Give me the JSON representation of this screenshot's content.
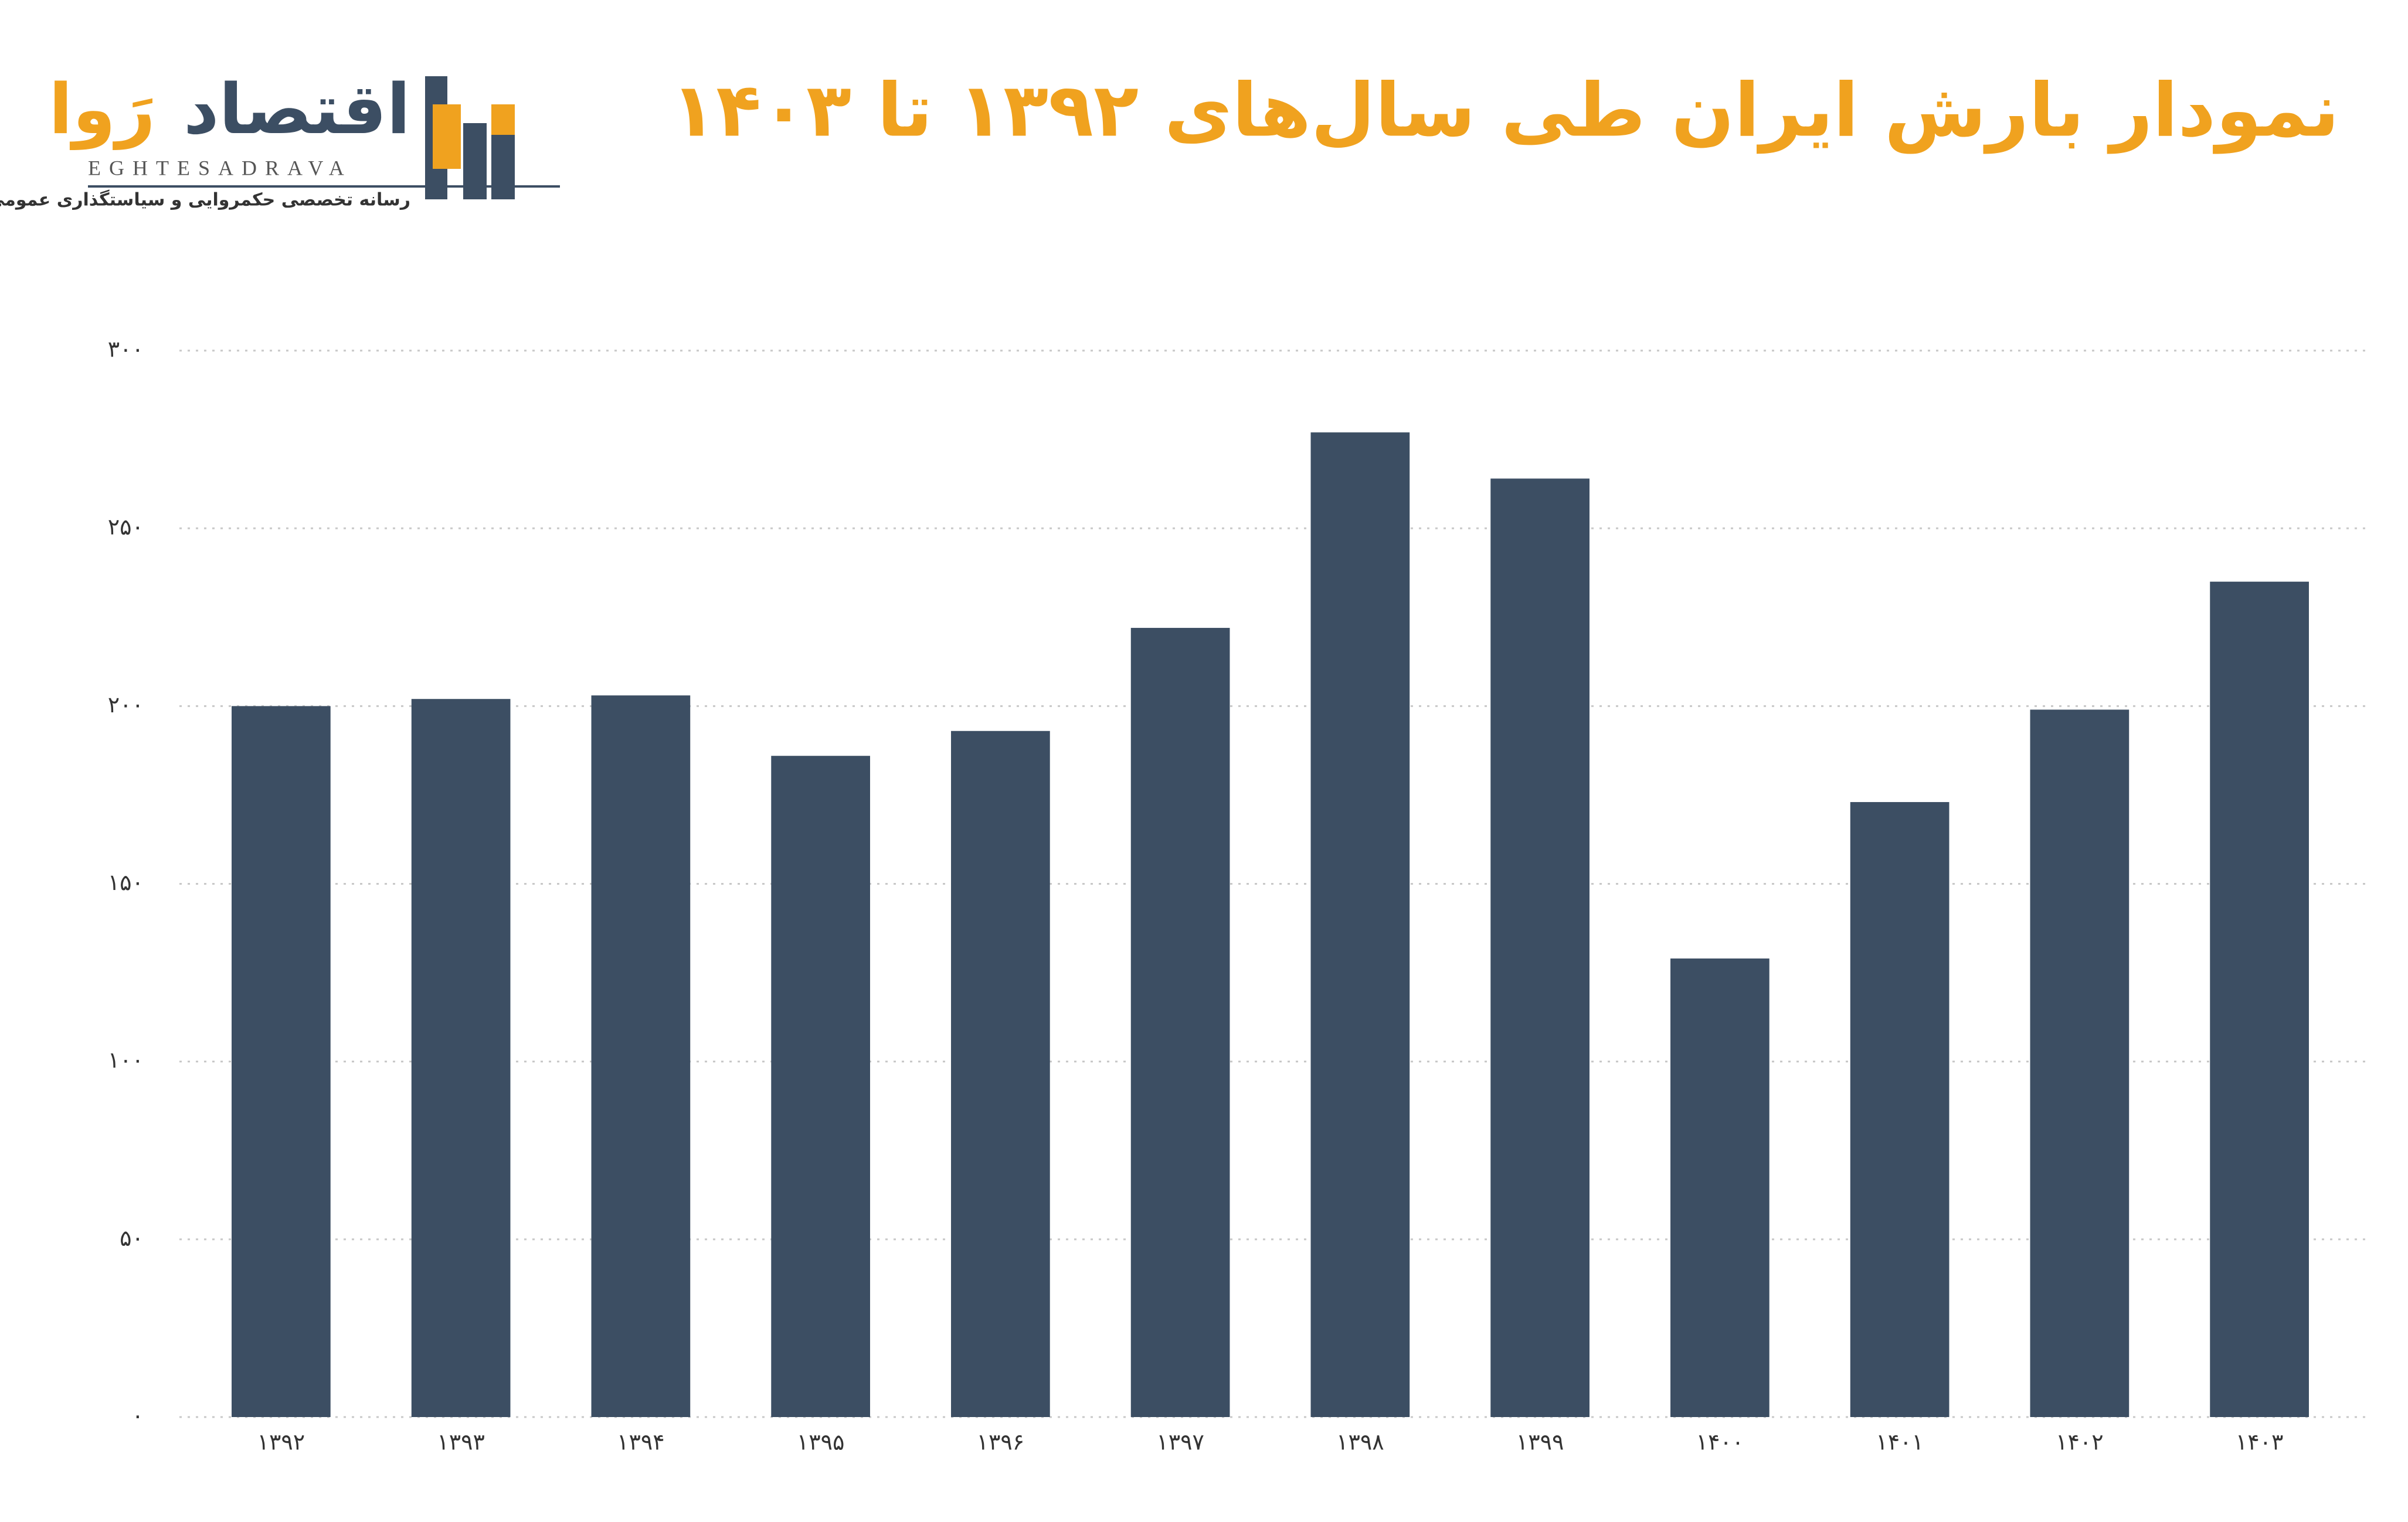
{
  "logo": {
    "name_part1": "اقتصاد",
    "name_part2": "رَوا",
    "latin": "EGHTESADRAVA",
    "tagline": "رسانه تخصصی حکمروایی و سیاستگذاری عمومی و اقتصادی"
  },
  "chart_data": {
    "type": "bar",
    "title": "نمودار بارش ایران طی سال‌های ۱۳۹۲ تا ۱۴۰۳",
    "categories": [
      "۱۳۹۲",
      "۱۳۹۳",
      "۱۳۹۴",
      "۱۳۹۵",
      "۱۳۹۶",
      "۱۳۹۷",
      "۱۳۹۸",
      "۱۳۹۹",
      "۱۴۰۰",
      "۱۴۰۱",
      "۱۴۰۲",
      "۱۴۰۳"
    ],
    "values": [
      200,
      202,
      203,
      186,
      193,
      222,
      277,
      264,
      129,
      173,
      199,
      235
    ],
    "color": "#3c4e63",
    "ylim": [
      0,
      300
    ],
    "yticks": [
      {
        "value": 0,
        "label": "۰"
      },
      {
        "value": 50,
        "label": "۵۰"
      },
      {
        "value": 100,
        "label": "۱۰۰"
      },
      {
        "value": 150,
        "label": "۱۵۰"
      },
      {
        "value": 200,
        "label": "۲۰۰"
      },
      {
        "value": 250,
        "label": "۲۵۰"
      },
      {
        "value": 300,
        "label": "۳۰۰"
      }
    ],
    "grid": true
  }
}
